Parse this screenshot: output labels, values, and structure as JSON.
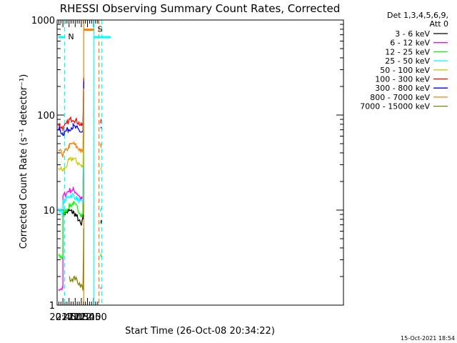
{
  "chart_data": {
    "type": "line",
    "title": "RHESSI Observing Summary Count Rates, Corrected",
    "xlabel": "Start Time (26-Oct-08 20:34:22)",
    "ylabel": "Corrected Count Rate (s⁻¹ detector⁻¹)",
    "yscale": "log",
    "ylim": [
      1,
      1000
    ],
    "y_ticks": [
      "1",
      "10",
      "100",
      "1000"
    ],
    "xlim_minutes": [
      20.7,
      90.3
    ],
    "x_ticks": [
      {
        "label": "20:45",
        "minute": 45
      },
      {
        "label": "21:00",
        "minute": 60
      },
      {
        "label": "21:15",
        "minute": 75
      },
      {
        "label": "21:30",
        "minute": 90
      },
      {
        "label": "21:45",
        "minute": 105
      },
      {
        "label": "22:00",
        "minute": 120
      }
    ],
    "x_range": [
      "20:34:22",
      "22:42"
    ],
    "legend_header": [
      "Det 1,3,4,5,6,9,",
      "Att 0"
    ],
    "legend_position": "right",
    "timestamp": "15-Oct-2021 18:54",
    "flags": [
      {
        "label": "N",
        "color": "#00ffff",
        "start": "20:34:22",
        "end": "20:49",
        "level": 660
      },
      {
        "label": "S",
        "color": "#ff8000",
        "start": "21:36",
        "end": "22:01",
        "level": 790
      },
      {
        "label": "",
        "color": "#00ffff",
        "start": "22:01",
        "end": "22:42",
        "level": 660
      }
    ],
    "vertical_markers": [
      {
        "time": "20:49",
        "color": "#00ffff",
        "style": "dashed"
      },
      {
        "time": "21:36",
        "color": "#ff8000",
        "style": "solid"
      },
      {
        "time": "22:01",
        "color": "#00ffff",
        "style": "solid"
      },
      {
        "time": "22:13",
        "color": "#ff8000",
        "style": "dashed"
      },
      {
        "time": "22:20",
        "color": "#00ffff",
        "style": "dashed"
      }
    ],
    "series": [
      {
        "name": "3 - 6 keV",
        "color": "#000000",
        "points": [
          [
            "20:45",
            9
          ],
          [
            "20:50",
            9.2
          ],
          [
            "21:00",
            9.8
          ],
          [
            "21:10",
            9.5
          ],
          [
            "21:20",
            8.5
          ],
          [
            "21:30",
            6.8
          ],
          [
            "21:34",
            8
          ],
          [
            "21:36",
            160
          ],
          [
            "22:16",
            null
          ],
          [
            "22:17",
            7.5
          ],
          [
            "22:19",
            7.5
          ]
        ]
      },
      {
        "name": "6 - 12 keV",
        "color": "#ff00ff",
        "points": [
          [
            "20:34",
            1.5
          ],
          [
            "20:45",
            1.5
          ],
          [
            "20:45",
            14
          ],
          [
            "21:00",
            16
          ],
          [
            "21:10",
            16.5
          ],
          [
            "21:20",
            15
          ],
          [
            "21:30",
            13
          ],
          [
            "21:34",
            13
          ],
          [
            "21:36",
            165
          ],
          [
            "22:16",
            null
          ],
          [
            "22:17",
            1.5
          ],
          [
            "22:19",
            1.5
          ]
        ]
      },
      {
        "name": "12 - 25 keV",
        "color": "#00ff00",
        "points": [
          [
            "20:34",
            3.2
          ],
          [
            "20:45",
            3.2
          ],
          [
            "20:45",
            9
          ],
          [
            "21:00",
            11
          ],
          [
            "21:10",
            11.8
          ],
          [
            "21:20",
            10.5
          ],
          [
            "21:30",
            9
          ],
          [
            "21:34",
            9
          ],
          [
            "21:36",
            170
          ],
          [
            "22:16",
            null
          ],
          [
            "22:17",
            3.3
          ],
          [
            "22:19",
            3.3
          ]
        ]
      },
      {
        "name": "25 - 50 keV",
        "color": "#00ffff",
        "points": [
          [
            "20:34",
            10
          ],
          [
            "20:45",
            9.5
          ],
          [
            "20:45",
            12
          ],
          [
            "21:00",
            14
          ],
          [
            "21:10",
            14.5
          ],
          [
            "21:20",
            13
          ],
          [
            "21:30",
            12
          ],
          [
            "21:34",
            12
          ],
          [
            "21:36",
            175
          ],
          [
            "22:16",
            null
          ],
          [
            "22:17",
            10
          ],
          [
            "22:19",
            10
          ]
        ]
      },
      {
        "name": "50 - 100 keV",
        "color": "#cccc00",
        "points": [
          [
            "20:34",
            28
          ],
          [
            "20:45",
            26
          ],
          [
            "20:49",
            27
          ],
          [
            "21:00",
            33
          ],
          [
            "21:10",
            35
          ],
          [
            "21:20",
            32
          ],
          [
            "21:30",
            29
          ],
          [
            "21:34",
            29
          ],
          [
            "21:36",
            180
          ],
          [
            "22:16",
            null
          ],
          [
            "22:17",
            28
          ],
          [
            "22:19",
            28
          ]
        ]
      },
      {
        "name": "100 - 300 keV",
        "color": "#ff0000",
        "points": [
          [
            "20:34",
            80
          ],
          [
            "20:45",
            72
          ],
          [
            "20:49",
            75
          ],
          [
            "21:00",
            88
          ],
          [
            "21:10",
            92
          ],
          [
            "21:20",
            85
          ],
          [
            "21:30",
            78
          ],
          [
            "21:34",
            78
          ],
          [
            "21:36",
            260
          ],
          [
            "22:16",
            null
          ],
          [
            "22:17",
            85
          ],
          [
            "22:19",
            85
          ]
        ]
      },
      {
        "name": "300 - 800 keV",
        "color": "#0000ff",
        "points": [
          [
            "20:34",
            72
          ],
          [
            "20:45",
            64
          ],
          [
            "20:49",
            66
          ],
          [
            "21:00",
            72
          ],
          [
            "21:10",
            76
          ],
          [
            "21:20",
            72
          ],
          [
            "21:30",
            66
          ],
          [
            "21:34",
            66
          ],
          [
            "21:36",
            220
          ],
          [
            "22:16",
            null
          ],
          [
            "22:17",
            70
          ],
          [
            "22:19",
            70
          ]
        ]
      },
      {
        "name": "800 - 7000 keV",
        "color": "#ff8000",
        "points": [
          [
            "20:34",
            43
          ],
          [
            "20:45",
            38
          ],
          [
            "20:49",
            40
          ],
          [
            "21:00",
            47
          ],
          [
            "21:10",
            50
          ],
          [
            "21:20",
            46
          ],
          [
            "21:30",
            42
          ],
          [
            "21:34",
            42
          ],
          [
            "21:36",
            190
          ],
          [
            "22:16",
            null
          ],
          [
            "22:17",
            48
          ],
          [
            "22:19",
            48
          ]
        ]
      },
      {
        "name": "7000 - 15000 keV",
        "color": "#808000",
        "points": [
          [
            "21:01",
            1.9
          ],
          [
            "21:15",
            1.9
          ],
          [
            "21:30",
            1.6
          ],
          [
            "21:34",
            1.5
          ],
          [
            "21:36",
            6
          ]
        ]
      }
    ]
  }
}
